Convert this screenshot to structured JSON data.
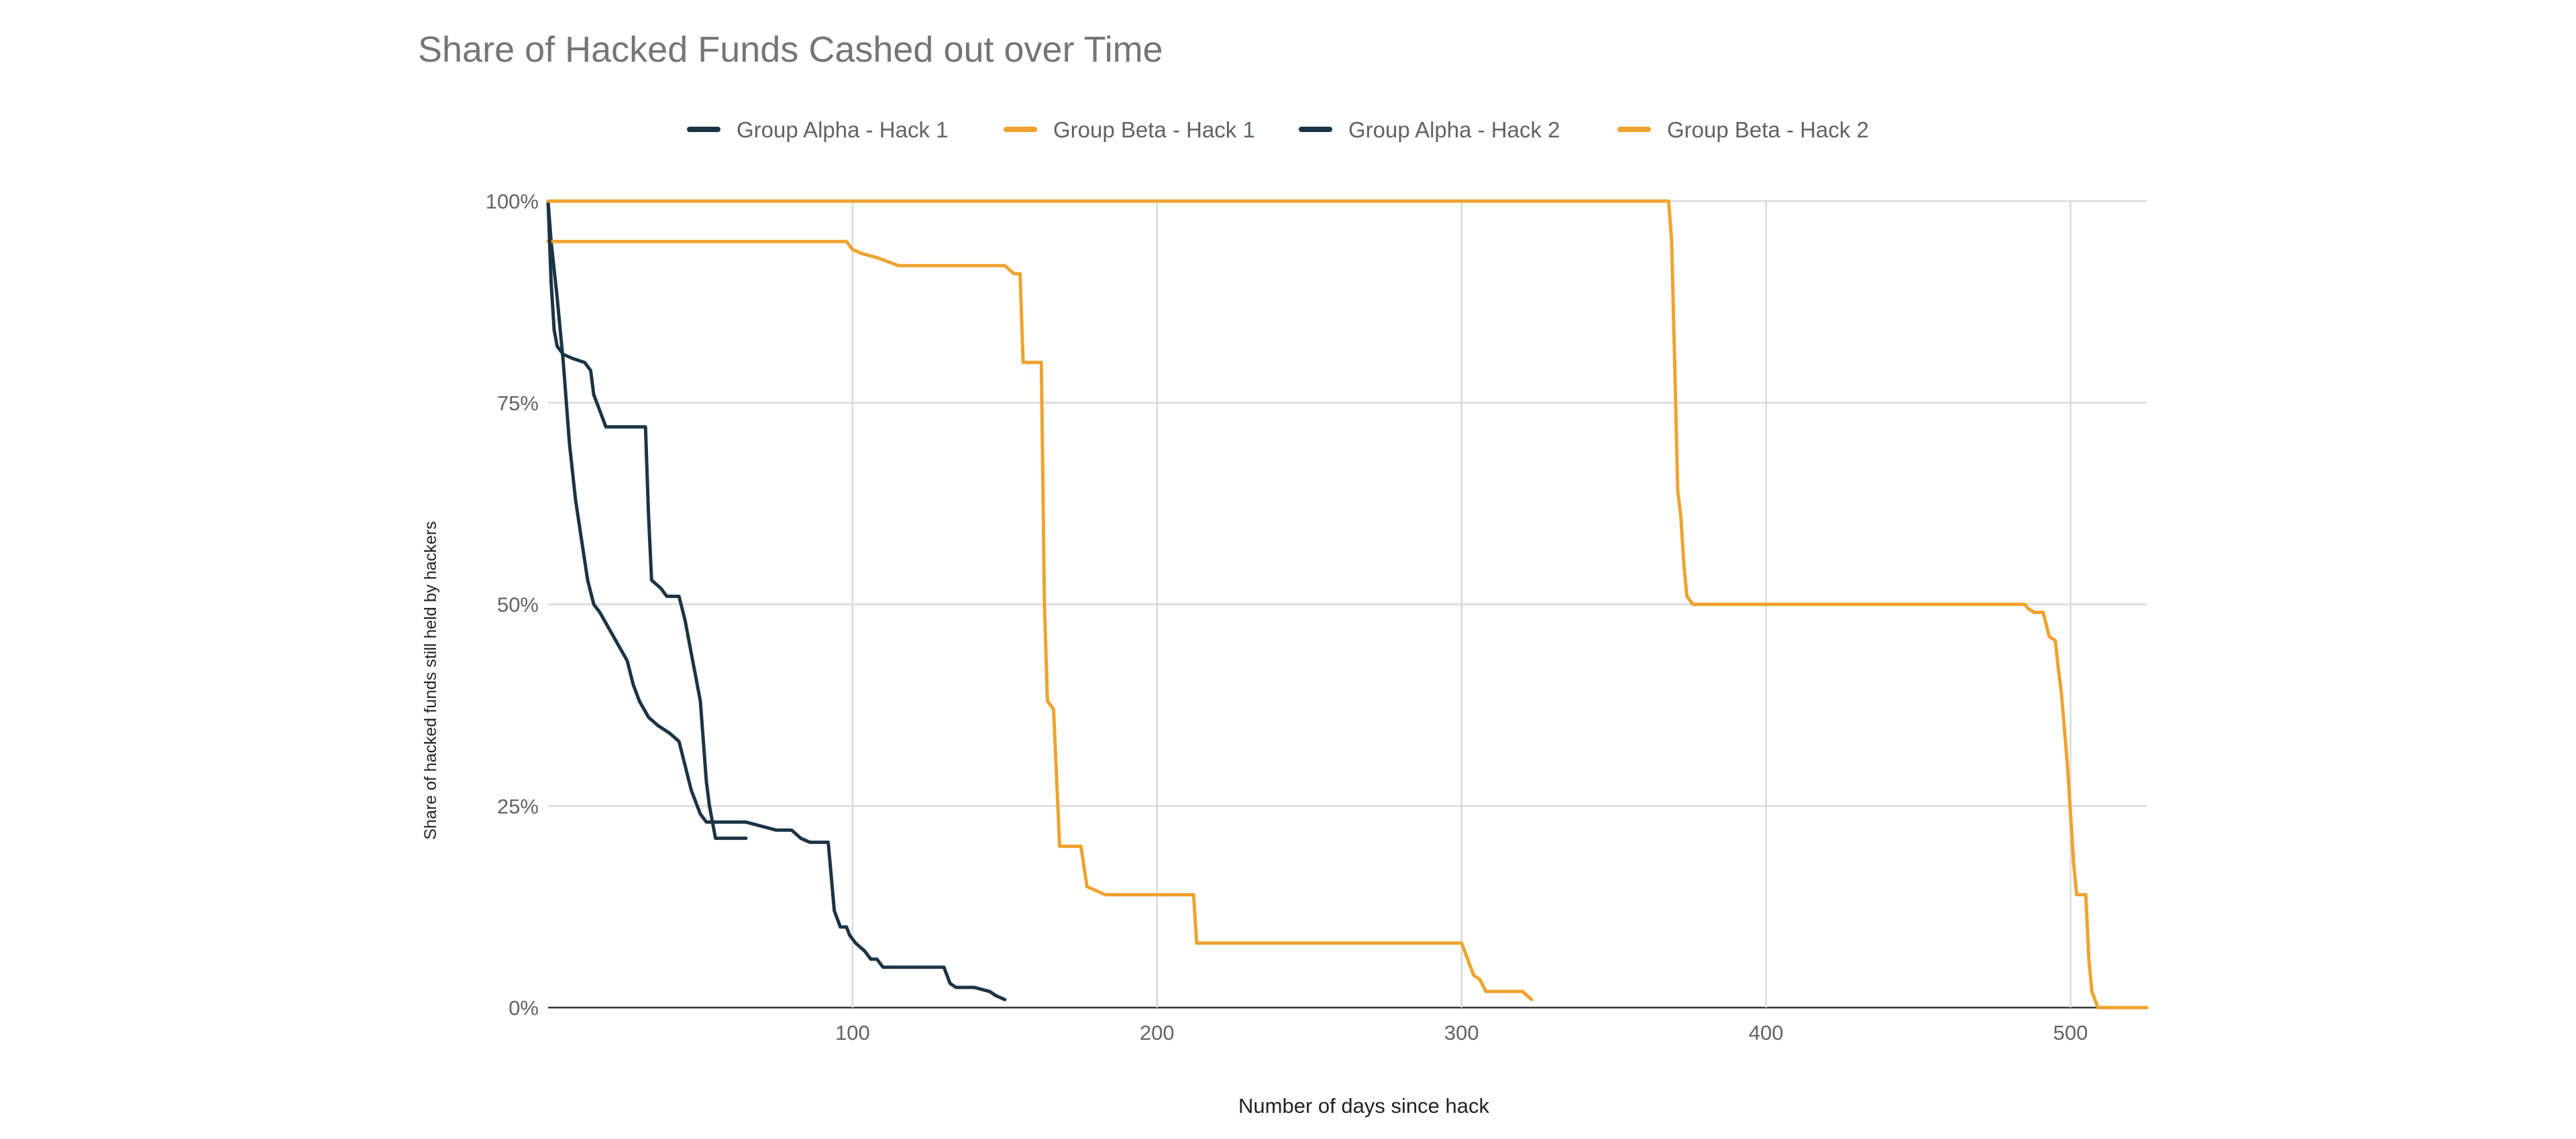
{
  "chart_data": {
    "type": "line",
    "title": "Share of Hacked Funds Cashed out over Time",
    "xlabel": "Number of days since hack",
    "ylabel": "Share of hacked funds still held by hackers",
    "xlim": [
      0,
      525
    ],
    "ylim": [
      0,
      100
    ],
    "x_ticks": [
      100,
      200,
      300,
      400,
      500
    ],
    "x_tick_labels": [
      "100",
      "200",
      "300",
      "400",
      "500"
    ],
    "y_ticks": [
      0,
      25,
      50,
      75,
      100
    ],
    "y_tick_labels": [
      "0%",
      "25%",
      "50%",
      "75%",
      "100%"
    ],
    "grid": true,
    "legend_position": "top",
    "series": [
      {
        "name": "Group Alpha - Hack 1",
        "color": "#1b3445",
        "points": [
          [
            0,
            100
          ],
          [
            1,
            95
          ],
          [
            3,
            88
          ],
          [
            5,
            80
          ],
          [
            7,
            70
          ],
          [
            9,
            63
          ],
          [
            11,
            58
          ],
          [
            13,
            53
          ],
          [
            15,
            50
          ],
          [
            17,
            49
          ],
          [
            20,
            47
          ],
          [
            23,
            45
          ],
          [
            26,
            43
          ],
          [
            28,
            40
          ],
          [
            30,
            38
          ],
          [
            33,
            36
          ],
          [
            36,
            35
          ],
          [
            40,
            34
          ],
          [
            43,
            33
          ],
          [
            45,
            30
          ],
          [
            47,
            27
          ],
          [
            49,
            25
          ],
          [
            50,
            24
          ],
          [
            52,
            23
          ],
          [
            55,
            23
          ],
          [
            60,
            23
          ],
          [
            65,
            23
          ],
          [
            70,
            22.5
          ],
          [
            75,
            22
          ],
          [
            80,
            22
          ],
          [
            83,
            21
          ],
          [
            86,
            20.5
          ],
          [
            92,
            20.5
          ],
          [
            94,
            12
          ],
          [
            96,
            10
          ],
          [
            98,
            10
          ],
          [
            99,
            9
          ],
          [
            101,
            8
          ],
          [
            104,
            7
          ],
          [
            106,
            6
          ],
          [
            108,
            6
          ],
          [
            110,
            5
          ],
          [
            115,
            5
          ],
          [
            120,
            5
          ],
          [
            125,
            5
          ],
          [
            130,
            5
          ],
          [
            132,
            3
          ],
          [
            134,
            2.5
          ],
          [
            140,
            2.5
          ],
          [
            145,
            2
          ],
          [
            147,
            1.5
          ],
          [
            150,
            1
          ]
        ]
      },
      {
        "name": "Group Beta - Hack 1",
        "color": "#f0a22e",
        "points": [
          [
            0,
            95
          ],
          [
            50,
            95
          ],
          [
            90,
            95
          ],
          [
            98,
            95
          ],
          [
            100,
            94
          ],
          [
            103,
            93.5
          ],
          [
            108,
            93
          ],
          [
            115,
            92
          ],
          [
            120,
            92
          ],
          [
            150,
            92
          ],
          [
            153,
            91
          ],
          [
            155,
            91
          ],
          [
            156,
            80
          ],
          [
            162,
            80
          ],
          [
            163,
            50
          ],
          [
            164,
            38
          ],
          [
            166,
            37
          ],
          [
            168,
            20
          ],
          [
            175,
            20
          ],
          [
            177,
            15
          ],
          [
            180,
            14.5
          ],
          [
            183,
            14
          ],
          [
            200,
            14
          ],
          [
            212,
            14
          ],
          [
            213,
            8
          ],
          [
            220,
            8
          ],
          [
            250,
            8
          ],
          [
            300,
            8
          ],
          [
            302,
            6
          ],
          [
            304,
            4
          ],
          [
            306,
            3.5
          ],
          [
            308,
            2
          ],
          [
            320,
            2
          ],
          [
            323,
            1
          ]
        ]
      },
      {
        "name": "Group Alpha -  Hack 2",
        "color": "#1b3445",
        "points": [
          [
            0,
            100
          ],
          [
            1,
            90
          ],
          [
            2,
            84
          ],
          [
            3,
            82
          ],
          [
            5,
            81
          ],
          [
            8,
            80.5
          ],
          [
            12,
            80
          ],
          [
            14,
            79
          ],
          [
            15,
            76
          ],
          [
            17,
            74
          ],
          [
            19,
            72
          ],
          [
            25,
            72
          ],
          [
            32,
            72
          ],
          [
            33,
            61
          ],
          [
            34,
            53
          ],
          [
            37,
            52
          ],
          [
            39,
            51
          ],
          [
            43,
            51
          ],
          [
            45,
            48
          ],
          [
            47,
            44
          ],
          [
            48,
            42
          ],
          [
            50,
            38
          ],
          [
            51,
            33
          ],
          [
            52,
            28
          ],
          [
            53,
            25
          ],
          [
            54,
            23
          ],
          [
            55,
            21
          ],
          [
            60,
            21
          ],
          [
            65,
            21
          ]
        ]
      },
      {
        "name": "Group Beta - Hack 2",
        "color": "#f0a22e",
        "points": [
          [
            0,
            100
          ],
          [
            100,
            100
          ],
          [
            200,
            100
          ],
          [
            300,
            100
          ],
          [
            368,
            100
          ],
          [
            369,
            95
          ],
          [
            370,
            80
          ],
          [
            371,
            64
          ],
          [
            372,
            61
          ],
          [
            373,
            55
          ],
          [
            374,
            51
          ],
          [
            376,
            50
          ],
          [
            400,
            50
          ],
          [
            450,
            50
          ],
          [
            485,
            50
          ],
          [
            486,
            49.5
          ],
          [
            488,
            49
          ],
          [
            491,
            49
          ],
          [
            493,
            46
          ],
          [
            495,
            45.5
          ],
          [
            496,
            42
          ],
          [
            497,
            39
          ],
          [
            499,
            30
          ],
          [
            500,
            24
          ],
          [
            501,
            18
          ],
          [
            502,
            14
          ],
          [
            505,
            14
          ],
          [
            506,
            6
          ],
          [
            507,
            2
          ],
          [
            509,
            0
          ],
          [
            525,
            0
          ]
        ]
      }
    ]
  }
}
